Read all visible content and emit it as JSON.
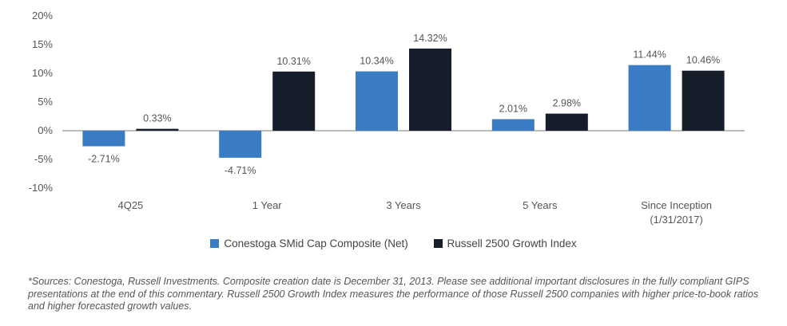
{
  "chart_data": {
    "type": "bar",
    "categories": [
      "4Q25",
      "1 Year",
      "3 Years",
      "5 Years",
      "Since Inception\n(1/31/2017)"
    ],
    "series": [
      {
        "name": "Conestoga SMid Cap Composite (Net)",
        "values": [
          -2.71,
          -4.71,
          10.34,
          2.01,
          11.44
        ],
        "labels": [
          "-2.71%",
          "-4.71%",
          "10.34%",
          "2.01%",
          "11.44%"
        ],
        "color": "#3a7cc3"
      },
      {
        "name": "Russell 2500 Growth Index",
        "values": [
          0.33,
          10.31,
          14.32,
          2.98,
          10.46
        ],
        "labels": [
          "0.33%",
          "10.31%",
          "14.32%",
          "2.98%",
          "10.46%"
        ],
        "color": "#161e2b"
      }
    ],
    "yticks": [
      20,
      15,
      10,
      5,
      0,
      -5,
      -10
    ],
    "ytick_labels": [
      "20%",
      "15%",
      "10%",
      "5%",
      "0%",
      "-5%",
      "-10%"
    ],
    "ylim": [
      -10,
      20
    ],
    "grid": false,
    "legend_position": "bottom"
  },
  "footnote": "*Sources: Conestoga, Russell Investments. Composite creation date is December 31, 2013. Please see additional important disclosures in the fully compliant GIPS presentations at the end of this commentary. Russell 2500 Growth Index measures the performance of those Russell 2500 companies with higher price-to-book ratios and higher forecasted growth values."
}
